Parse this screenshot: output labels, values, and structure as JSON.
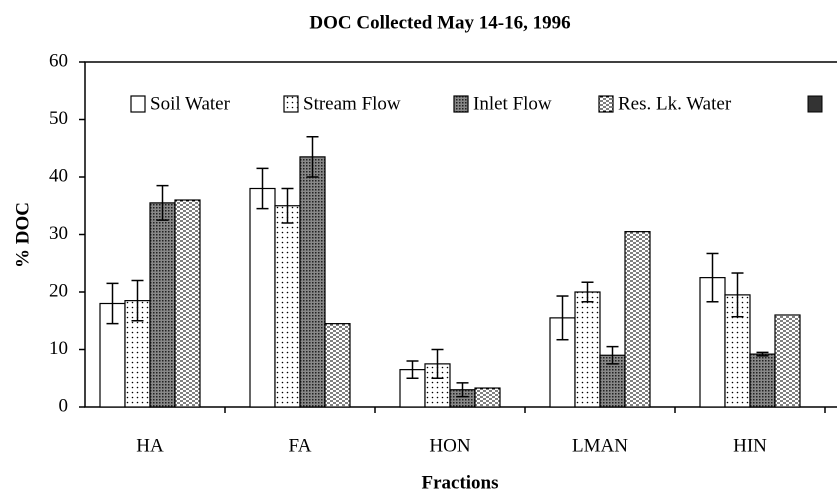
{
  "chart_data": {
    "type": "bar",
    "title": "DOC Collected May 14-16, 1996",
    "xlabel": "Fractions",
    "ylabel": "% DOC",
    "categories": [
      "HA",
      "FA",
      "HON",
      "LMAN",
      "HIN"
    ],
    "series": [
      {
        "name": "Soil Water",
        "color": "#ffffff",
        "pattern": "none",
        "values": [
          18,
          38,
          6.5,
          15.5,
          22.5
        ],
        "errors": [
          3.5,
          3.5,
          1.5,
          3.8,
          4.2
        ]
      },
      {
        "name": "Stream Flow",
        "color": "#ffffff",
        "pattern": "dots",
        "values": [
          18.5,
          35,
          7.5,
          20,
          19.5
        ],
        "errors": [
          3.5,
          3,
          2.5,
          1.7,
          3.8
        ]
      },
      {
        "name": "Inlet Flow",
        "color": "#555555",
        "pattern": "dense",
        "values": [
          35.5,
          43.5,
          3,
          9,
          9.2
        ],
        "errors": [
          3,
          3.5,
          1.2,
          1.5,
          0.3
        ]
      },
      {
        "name": "Res. Lk. Water",
        "color": "#ffffff",
        "pattern": "dashes",
        "values": [
          36,
          14.5,
          3.3,
          30.5,
          16
        ]
      }
    ],
    "ylim": [
      0,
      60
    ],
    "yticks": [
      0,
      10,
      20,
      30,
      40,
      50,
      60
    ],
    "legend": "top"
  }
}
